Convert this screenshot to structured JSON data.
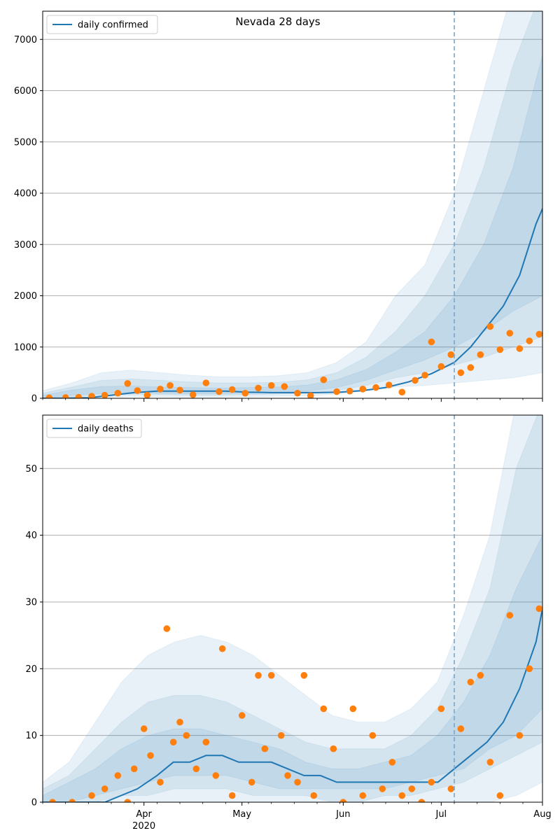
{
  "figure": {
    "title": "Nevada 28 days"
  },
  "colors": {
    "line": "#1f77b4",
    "points": "#ff7f0e",
    "band": "#1f77b4",
    "grid": "#b0b0b0",
    "vline": "#7aa6c8"
  },
  "chart_data": [
    {
      "type": "line",
      "name": "daily confirmed",
      "x_tick_labels": [
        "Apr\n2020",
        "May",
        "Jun",
        "Jul",
        "Aug"
      ],
      "x_range": [
        "2020-03-01",
        "2020-08-01"
      ],
      "ylim": [
        0,
        7550
      ],
      "y_ticks": [
        0,
        1000,
        2000,
        3000,
        4000,
        5000,
        6000,
        7000
      ],
      "grid": "horizontal",
      "legend": "upper-left",
      "forecast_start": "2020-07-05",
      "series": [
        {
          "name": "daily confirmed",
          "x": [
            "2020-03-01",
            "2020-03-08",
            "2020-03-15",
            "2020-03-22",
            "2020-03-29",
            "2020-04-05",
            "2020-04-12",
            "2020-04-19",
            "2020-04-26",
            "2020-05-03",
            "2020-05-10",
            "2020-05-17",
            "2020-05-24",
            "2020-05-31",
            "2020-06-07",
            "2020-06-14",
            "2020-06-21",
            "2020-06-28",
            "2020-07-05",
            "2020-07-10",
            "2020-07-15",
            "2020-07-20",
            "2020-07-25",
            "2020-07-30",
            "2020-08-01"
          ],
          "values": [
            0,
            2,
            10,
            60,
            110,
            140,
            140,
            140,
            140,
            120,
            110,
            110,
            110,
            120,
            150,
            210,
            320,
            480,
            700,
            1000,
            1400,
            1800,
            2400,
            3400,
            3700
          ]
        }
      ],
      "observed": {
        "x": [
          "2020-03-03",
          "2020-03-08",
          "2020-03-12",
          "2020-03-16",
          "2020-03-20",
          "2020-03-24",
          "2020-03-27",
          "2020-03-30",
          "2020-04-02",
          "2020-04-06",
          "2020-04-09",
          "2020-04-12",
          "2020-04-16",
          "2020-04-20",
          "2020-04-24",
          "2020-04-28",
          "2020-05-02",
          "2020-05-06",
          "2020-05-10",
          "2020-05-14",
          "2020-05-18",
          "2020-05-22",
          "2020-05-26",
          "2020-05-30",
          "2020-06-03",
          "2020-06-07",
          "2020-06-11",
          "2020-06-15",
          "2020-06-19",
          "2020-06-23",
          "2020-06-26",
          "2020-06-28",
          "2020-07-01",
          "2020-07-04",
          "2020-07-07",
          "2020-07-10",
          "2020-07-13",
          "2020-07-16",
          "2020-07-19",
          "2020-07-22",
          "2020-07-25",
          "2020-07-28",
          "2020-07-31"
        ],
        "values": [
          10,
          15,
          20,
          40,
          60,
          100,
          290,
          150,
          60,
          180,
          250,
          160,
          70,
          300,
          130,
          170,
          100,
          200,
          250,
          230,
          100,
          50,
          360,
          130,
          140,
          180,
          210,
          260,
          120,
          350,
          450,
          1100,
          620,
          850,
          500,
          600,
          850,
          1400,
          950,
          1270,
          970,
          1120,
          1250
        ]
      },
      "bands": [
        {
          "upper": [
            150,
            300,
            500,
            550,
            500,
            450,
            420,
            420,
            440,
            500,
            700,
            1100,
            2000,
            2600,
            4000,
            6000,
            8000,
            8000
          ],
          "lower": [
            0,
            10,
            30,
            40,
            30,
            20,
            20,
            30,
            40,
            50,
            80,
            150,
            220,
            250,
            300,
            350,
            400,
            500
          ]
        },
        {
          "upper": [
            100,
            220,
            350,
            380,
            350,
            320,
            300,
            300,
            310,
            360,
            500,
            800,
            1300,
            2000,
            3000,
            4500,
            6500,
            8000
          ],
          "lower": [
            0,
            30,
            60,
            80,
            70,
            60,
            60,
            70,
            80,
            100,
            150,
            250,
            400,
            500,
            650,
            800,
            1000,
            1200
          ]
        },
        {
          "upper": [
            60,
            160,
            230,
            240,
            220,
            210,
            200,
            210,
            220,
            260,
            360,
            560,
            900,
            1300,
            2000,
            3000,
            4500,
            6700
          ],
          "lower": [
            0,
            60,
            90,
            110,
            100,
            90,
            90,
            100,
            110,
            140,
            210,
            350,
            550,
            750,
            1000,
            1300,
            1700,
            2000
          ]
        }
      ]
    },
    {
      "type": "line",
      "name": "daily deaths",
      "x_tick_labels": [
        "Apr\n2020",
        "May",
        "Jun",
        "Jul",
        "Aug"
      ],
      "x_range": [
        "2020-03-01",
        "2020-08-01"
      ],
      "ylim": [
        0,
        58
      ],
      "y_ticks": [
        0,
        10,
        20,
        30,
        40,
        50
      ],
      "grid": "horizontal",
      "legend": "upper-left",
      "forecast_start": "2020-07-05",
      "series": [
        {
          "name": "daily deaths",
          "x": [
            "2020-03-01",
            "2020-03-20",
            "2020-03-25",
            "2020-03-30",
            "2020-04-05",
            "2020-04-10",
            "2020-04-15",
            "2020-04-20",
            "2020-04-25",
            "2020-04-30",
            "2020-05-05",
            "2020-05-10",
            "2020-05-15",
            "2020-05-20",
            "2020-05-25",
            "2020-05-30",
            "2020-06-05",
            "2020-06-10",
            "2020-06-15",
            "2020-06-20",
            "2020-06-25",
            "2020-06-30",
            "2020-07-05",
            "2020-07-10",
            "2020-07-15",
            "2020-07-20",
            "2020-07-25",
            "2020-07-30",
            "2020-08-01"
          ],
          "values": [
            0,
            0,
            1,
            2,
            4,
            6,
            6,
            7,
            7,
            6,
            6,
            6,
            5,
            4,
            4,
            3,
            3,
            3,
            3,
            3,
            3,
            3,
            5,
            7,
            9,
            12,
            17,
            24,
            29
          ]
        }
      ],
      "observed": {
        "x": [
          "2020-03-04",
          "2020-03-10",
          "2020-03-16",
          "2020-03-20",
          "2020-03-24",
          "2020-03-27",
          "2020-03-29",
          "2020-04-01",
          "2020-04-03",
          "2020-04-06",
          "2020-04-08",
          "2020-04-10",
          "2020-04-12",
          "2020-04-14",
          "2020-04-17",
          "2020-04-20",
          "2020-04-23",
          "2020-04-25",
          "2020-04-28",
          "2020-05-01",
          "2020-05-04",
          "2020-05-06",
          "2020-05-08",
          "2020-05-10",
          "2020-05-13",
          "2020-05-15",
          "2020-05-18",
          "2020-05-20",
          "2020-05-23",
          "2020-05-26",
          "2020-05-29",
          "2020-06-01",
          "2020-06-04",
          "2020-06-07",
          "2020-06-10",
          "2020-06-13",
          "2020-06-16",
          "2020-06-19",
          "2020-06-22",
          "2020-06-25",
          "2020-06-28",
          "2020-07-01",
          "2020-07-04",
          "2020-07-07",
          "2020-07-10",
          "2020-07-13",
          "2020-07-16",
          "2020-07-19",
          "2020-07-22",
          "2020-07-25",
          "2020-07-28",
          "2020-07-31"
        ],
        "values": [
          0,
          0,
          1,
          2,
          4,
          0,
          5,
          11,
          7,
          3,
          26,
          9,
          12,
          10,
          5,
          9,
          4,
          23,
          1,
          13,
          3,
          19,
          8,
          19,
          10,
          4,
          3,
          19,
          1,
          14,
          8,
          0,
          14,
          1,
          10,
          2,
          6,
          1,
          2,
          0,
          3,
          14,
          2,
          11,
          18,
          19,
          6,
          1,
          28,
          10,
          20,
          29
        ]
      },
      "bands": [
        {
          "upper": [
            3,
            6,
            12,
            18,
            22,
            24,
            25,
            24,
            22,
            19,
            16,
            13,
            12,
            12,
            14,
            18,
            28,
            40,
            60,
            60
          ],
          "lower": [
            0,
            0,
            0,
            0,
            0,
            0,
            0,
            0,
            0,
            0,
            0,
            0,
            0,
            0,
            0,
            0,
            0,
            0,
            1,
            3
          ]
        },
        {
          "upper": [
            2,
            4,
            8,
            12,
            15,
            16,
            16,
            15,
            13,
            11,
            9,
            8,
            8,
            8,
            10,
            14,
            22,
            32,
            50,
            60
          ],
          "lower": [
            0,
            0,
            0,
            1,
            1,
            2,
            2,
            2,
            1,
            1,
            1,
            0,
            0,
            1,
            1,
            2,
            3,
            5,
            7,
            9
          ]
        },
        {
          "upper": [
            1,
            3,
            5,
            8,
            10,
            11,
            11,
            10,
            9,
            8,
            6,
            5,
            5,
            6,
            7,
            10,
            15,
            22,
            32,
            40
          ],
          "lower": [
            0,
            0,
            1,
            2,
            3,
            4,
            4,
            4,
            3,
            2,
            2,
            2,
            2,
            2,
            3,
            4,
            5,
            8,
            10,
            14
          ]
        }
      ]
    }
  ]
}
